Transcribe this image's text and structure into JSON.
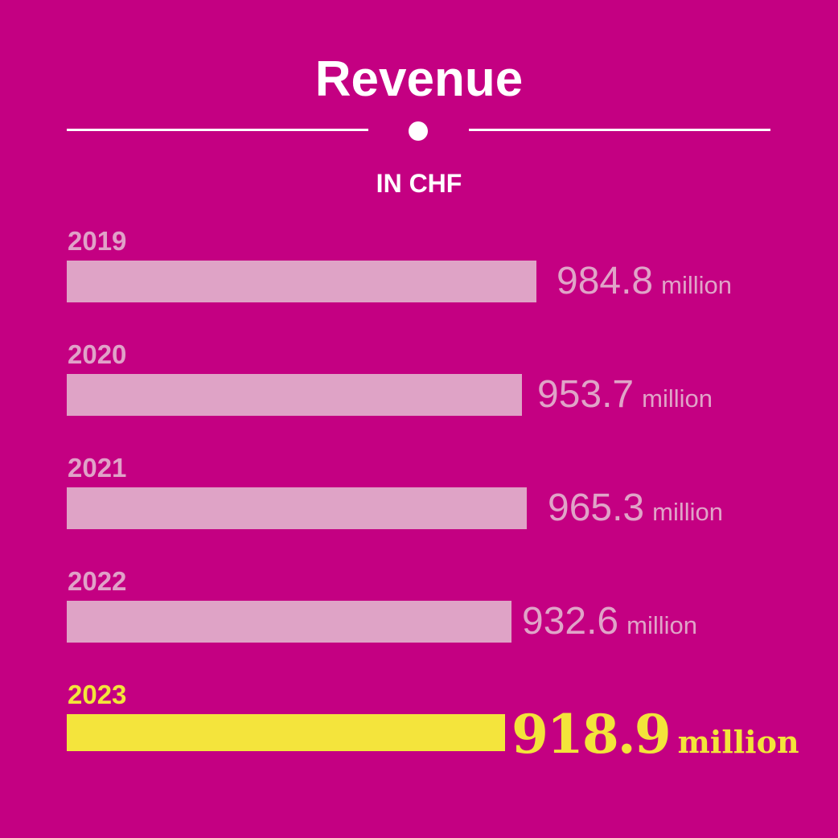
{
  "chart_data": {
    "type": "bar",
    "orientation": "horizontal",
    "title": "Revenue",
    "subtitle": "IN CHF",
    "unit": "million",
    "categories": [
      "2019",
      "2020",
      "2021",
      "2022",
      "2023"
    ],
    "values": [
      984.8,
      953.7,
      965.3,
      932.6,
      918.9
    ],
    "value_labels": [
      "984.8",
      "953.7",
      "965.3",
      "932.6",
      "918.9"
    ],
    "highlight": "2023",
    "colors": {
      "background": "#c40082",
      "bar": "#dfa3c6",
      "highlight": "#f4e43c",
      "title": "#ffffff"
    }
  }
}
